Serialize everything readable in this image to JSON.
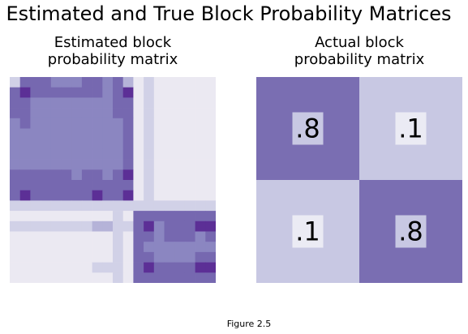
{
  "figure": {
    "title": "Estimated and True Block Probability Matrices",
    "caption": "Figure 2.5"
  },
  "colors": {
    "very_light": "#ebe9f2",
    "light": "#d1d1e7",
    "medium": "#b5b3d8",
    "medium_dark": "#8b86c1",
    "dark": "#7668b0",
    "darkest": "#5c2f96",
    "actual_high": "#7a6eb2",
    "actual_low": "#c8c8e3",
    "label_box_on_high": "#c8c8e3",
    "label_box_on_low": "#ebebf4"
  },
  "chart_data": [
    {
      "type": "heatmap",
      "title": [
        "Estimated block",
        "probability matrix"
      ],
      "n_rows": 20,
      "n_cols": 20,
      "legend_levels": [
        "very_light",
        "light",
        "medium",
        "medium_dark",
        "dark",
        "darkest"
      ],
      "values": [
        [
          1,
          4,
          4,
          4,
          3,
          3,
          3,
          4,
          4,
          3,
          4,
          2,
          0,
          1,
          0,
          0,
          0,
          0,
          0,
          0
        ],
        [
          4,
          5,
          4,
          4,
          4,
          4,
          4,
          4,
          4,
          3,
          4,
          5,
          0,
          1,
          0,
          0,
          0,
          0,
          0,
          0
        ],
        [
          4,
          4,
          3,
          3,
          3,
          3,
          3,
          3,
          3,
          3,
          4,
          4,
          0,
          1,
          0,
          0,
          0,
          0,
          0,
          0
        ],
        [
          4,
          4,
          3,
          3,
          3,
          3,
          3,
          3,
          3,
          3,
          4,
          4,
          0,
          1,
          0,
          0,
          0,
          0,
          0,
          0
        ],
        [
          3,
          4,
          3,
          3,
          3,
          3,
          3,
          3,
          3,
          3,
          3,
          4,
          0,
          1,
          0,
          0,
          0,
          0,
          0,
          0
        ],
        [
          3,
          3,
          3,
          3,
          3,
          3,
          3,
          3,
          3,
          3,
          3,
          4,
          0,
          1,
          0,
          0,
          0,
          0,
          0,
          0
        ],
        [
          3,
          3,
          3,
          3,
          3,
          3,
          3,
          3,
          3,
          3,
          3,
          4,
          0,
          1,
          0,
          0,
          0,
          0,
          0,
          0
        ],
        [
          3,
          3,
          3,
          3,
          3,
          3,
          3,
          3,
          3,
          3,
          3,
          4,
          0,
          1,
          0,
          0,
          0,
          0,
          0,
          0
        ],
        [
          3,
          3,
          3,
          3,
          3,
          3,
          3,
          3,
          3,
          3,
          3,
          4,
          0,
          1,
          0,
          0,
          0,
          0,
          0,
          0
        ],
        [
          4,
          4,
          4,
          4,
          4,
          4,
          3,
          4,
          4,
          3,
          4,
          5,
          0,
          1,
          0,
          0,
          0,
          0,
          0,
          0
        ],
        [
          4,
          4,
          4,
          4,
          4,
          4,
          4,
          4,
          4,
          4,
          4,
          4,
          0,
          1,
          0,
          0,
          0,
          0,
          0,
          0
        ],
        [
          4,
          5,
          4,
          4,
          4,
          4,
          4,
          4,
          5,
          4,
          4,
          5,
          0,
          1,
          0,
          0,
          0,
          0,
          0,
          0
        ],
        [
          1,
          1,
          1,
          1,
          1,
          1,
          1,
          1,
          1,
          1,
          1,
          1,
          1,
          1,
          1,
          1,
          1,
          1,
          1,
          1
        ],
        [
          0,
          0,
          0,
          0,
          0,
          0,
          0,
          0,
          0,
          0,
          1,
          0,
          4,
          4,
          4,
          4,
          4,
          4,
          4,
          4
        ],
        [
          1,
          1,
          1,
          1,
          1,
          1,
          1,
          1,
          2,
          2,
          1,
          1,
          4,
          5,
          3,
          4,
          4,
          4,
          5,
          5
        ],
        [
          0,
          0,
          0,
          0,
          0,
          0,
          0,
          0,
          0,
          0,
          1,
          0,
          4,
          4,
          3,
          4,
          4,
          4,
          3,
          4
        ],
        [
          0,
          0,
          0,
          0,
          0,
          0,
          0,
          0,
          0,
          0,
          1,
          0,
          4,
          3,
          3,
          3,
          3,
          3,
          3,
          3
        ],
        [
          0,
          0,
          0,
          0,
          0,
          0,
          0,
          0,
          0,
          0,
          1,
          0,
          4,
          4,
          3,
          3,
          3,
          3,
          4,
          4
        ],
        [
          0,
          0,
          0,
          0,
          0,
          0,
          0,
          0,
          1,
          1,
          1,
          0,
          4,
          5,
          4,
          4,
          4,
          4,
          5,
          5
        ],
        [
          0,
          0,
          0,
          0,
          0,
          0,
          0,
          0,
          0,
          0,
          1,
          0,
          4,
          4,
          4,
          4,
          4,
          4,
          4,
          4
        ]
      ]
    },
    {
      "type": "heatmap",
      "title": [
        "Actual block",
        "probability matrix"
      ],
      "n_rows": 2,
      "n_cols": 2,
      "values": [
        [
          0.8,
          0.1
        ],
        [
          0.1,
          0.8
        ]
      ],
      "annotations": [
        [
          ".8",
          ".1"
        ],
        [
          ".1",
          ".8"
        ]
      ]
    }
  ]
}
